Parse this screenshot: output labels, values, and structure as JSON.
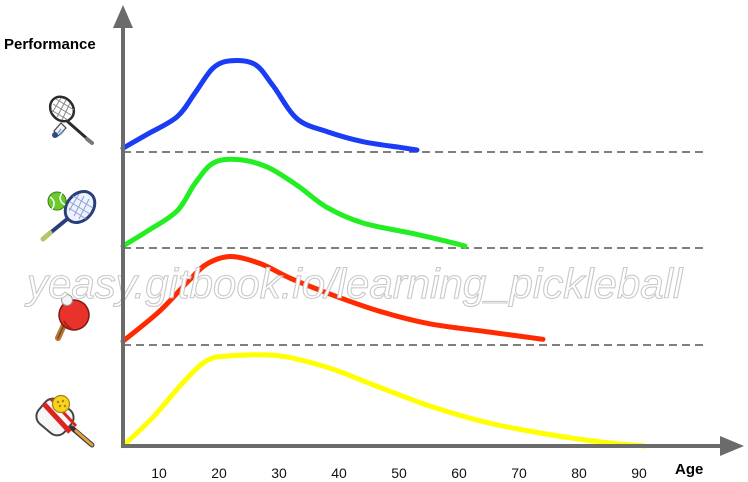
{
  "chart_data": {
    "type": "line",
    "xlabel": "Age",
    "ylabel": "Performance",
    "x_ticks": [
      10,
      20,
      30,
      40,
      50,
      60,
      70,
      80,
      90
    ],
    "xlim": [
      4,
      100
    ],
    "grid": false,
    "watermark": "yeasy.gitbook.io/learning_pickleball",
    "series": [
      {
        "icon": "badminton-icon",
        "color": "#1a3cf5",
        "baseline_color": "#555555",
        "points": [
          [
            4,
            0.02
          ],
          [
            8,
            0.17
          ],
          [
            13,
            0.36
          ],
          [
            16,
            0.62
          ],
          [
            19,
            0.89
          ],
          [
            22,
            0.97
          ],
          [
            26,
            0.93
          ],
          [
            29,
            0.7
          ],
          [
            33,
            0.34
          ],
          [
            38,
            0.2
          ],
          [
            44,
            0.09
          ],
          [
            50,
            0.03
          ],
          [
            53,
            0.0
          ]
        ]
      },
      {
        "icon": "tennis-icon",
        "color": "#22ee22",
        "baseline_color": "#555555",
        "points": [
          [
            4,
            0.0
          ],
          [
            8,
            0.16
          ],
          [
            13,
            0.38
          ],
          [
            16,
            0.68
          ],
          [
            19,
            0.9
          ],
          [
            23,
            0.94
          ],
          [
            28,
            0.86
          ],
          [
            33,
            0.66
          ],
          [
            38,
            0.42
          ],
          [
            44,
            0.25
          ],
          [
            52,
            0.14
          ],
          [
            58,
            0.05
          ],
          [
            61,
            0.0
          ]
        ]
      },
      {
        "icon": "table-tennis-icon",
        "color": "#ff2a00",
        "baseline_color": "#555555",
        "points": [
          [
            4,
            0.02
          ],
          [
            10,
            0.34
          ],
          [
            15,
            0.68
          ],
          [
            18,
            0.86
          ],
          [
            22,
            0.94
          ],
          [
            27,
            0.86
          ],
          [
            32,
            0.7
          ],
          [
            39,
            0.52
          ],
          [
            47,
            0.34
          ],
          [
            55,
            0.21
          ],
          [
            65,
            0.12
          ],
          [
            74,
            0.04
          ]
        ]
      },
      {
        "icon": "pickleball-icon",
        "color": "#ffff00",
        "baseline_color": "#555555",
        "points": [
          [
            4,
            0.0
          ],
          [
            9,
            0.3
          ],
          [
            14,
            0.66
          ],
          [
            18,
            0.89
          ],
          [
            22,
            0.94
          ],
          [
            30,
            0.94
          ],
          [
            38,
            0.82
          ],
          [
            46,
            0.63
          ],
          [
            55,
            0.42
          ],
          [
            65,
            0.24
          ],
          [
            75,
            0.12
          ],
          [
            84,
            0.04
          ],
          [
            91,
            0.0
          ]
        ]
      }
    ]
  }
}
